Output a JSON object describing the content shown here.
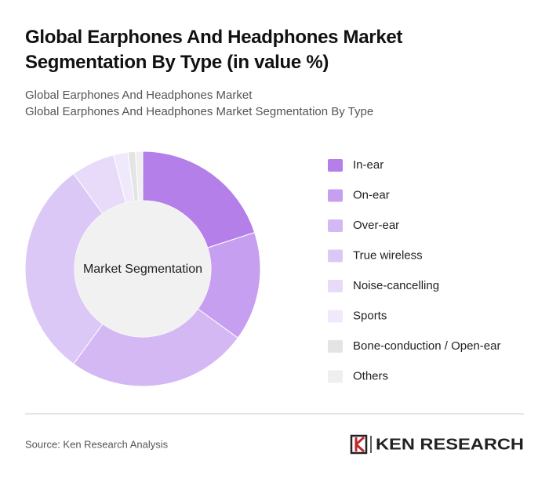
{
  "chart_data": {
    "type": "donut",
    "title": "Global Earphones And Headphones Market Segmentation By Type (in value %)",
    "subtitle": [
      "Global Earphones And Headphones Market",
      "Global Earphones And Headphones Market Segmentation By Type"
    ],
    "center_label": "Market Segmentation",
    "categories": [
      "In-ear",
      "On-ear",
      "Over-ear",
      "True wireless",
      "Noise-cancelling",
      "Sports",
      "Bone-conduction / Open-ear",
      "Others"
    ],
    "values": [
      20,
      15,
      25,
      30,
      6,
      2,
      1,
      1
    ],
    "colors": [
      "#b47fe8",
      "#c79ff0",
      "#d4b8f4",
      "#dcc8f6",
      "#e7dbf9",
      "#efe9fb",
      "#e4e4e4",
      "#efefef"
    ],
    "source": "Source: Ken Research Analysis",
    "brand": "KEN RESEARCH"
  }
}
